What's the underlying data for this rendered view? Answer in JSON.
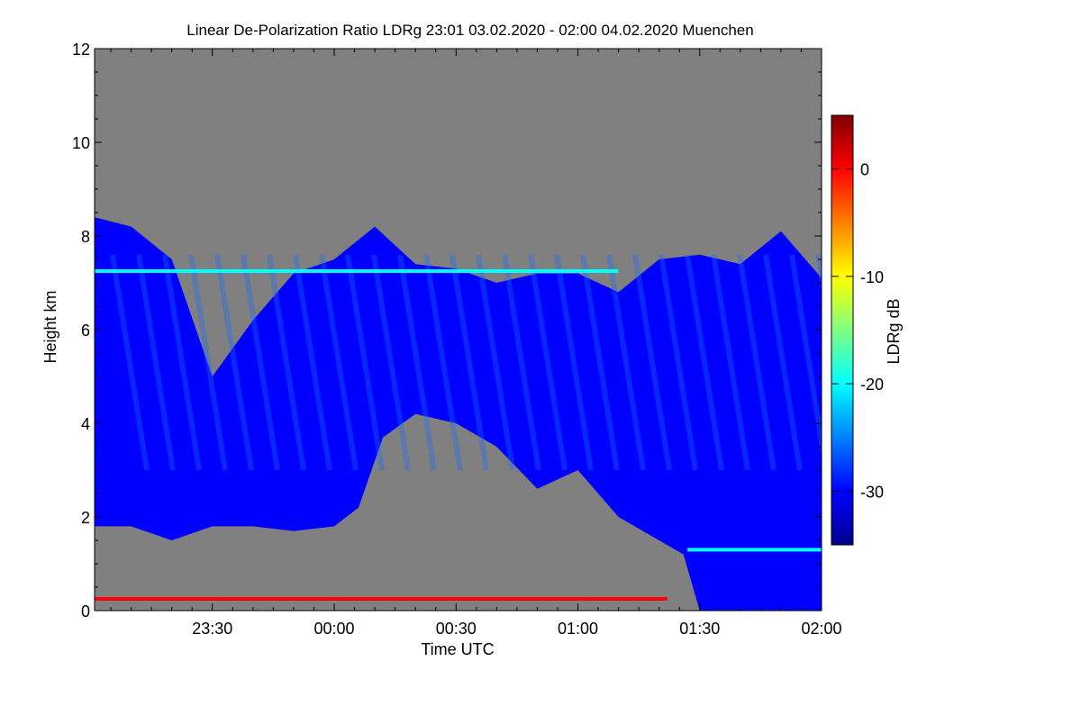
{
  "chart_data": {
    "type": "heatmap",
    "title": "Linear De-Polarization Ratio LDRg   23:01 03.02.2020 - 02:00 04.02.2020 Muenchen",
    "xlabel": "Time UTC",
    "ylabel": "Height km",
    "colorbar_label": "LDRg dB",
    "x_range": [
      "23:01",
      "02:00"
    ],
    "ylim": [
      0,
      12
    ],
    "colorbar_range": [
      -35,
      5
    ],
    "x_ticks": [
      "23:30",
      "00:00",
      "00:30",
      "01:00",
      "01:30",
      "02:00"
    ],
    "y_ticks": [
      "0",
      "2",
      "4",
      "6",
      "8",
      "10",
      "12"
    ],
    "colorbar_ticks": [
      "0",
      "-10",
      "-20",
      "-30"
    ],
    "background_color": "#808080",
    "colormap": [
      "#00008f",
      "#0000ff",
      "#0080ff",
      "#00ffff",
      "#80ff80",
      "#ffff00",
      "#ff8000",
      "#ff0000",
      "#800000"
    ],
    "cloud_top_km": [
      {
        "time": "23:01",
        "height": 8.4
      },
      {
        "time": "23:10",
        "height": 8.2
      },
      {
        "time": "23:20",
        "height": 7.5
      },
      {
        "time": "23:30",
        "height": 5.0
      },
      {
        "time": "23:40",
        "height": 6.2
      },
      {
        "time": "23:50",
        "height": 7.2
      },
      {
        "time": "00:00",
        "height": 7.5
      },
      {
        "time": "00:10",
        "height": 8.2
      },
      {
        "time": "00:20",
        "height": 7.4
      },
      {
        "time": "00:30",
        "height": 7.3
      },
      {
        "time": "00:40",
        "height": 7.0
      },
      {
        "time": "00:50",
        "height": 7.2
      },
      {
        "time": "01:00",
        "height": 7.2
      },
      {
        "time": "01:10",
        "height": 6.8
      },
      {
        "time": "01:20",
        "height": 7.5
      },
      {
        "time": "01:30",
        "height": 7.6
      },
      {
        "time": "01:40",
        "height": 7.4
      },
      {
        "time": "01:50",
        "height": 8.1
      },
      {
        "time": "02:00",
        "height": 7.1
      }
    ],
    "cloud_base_km": [
      {
        "time": "23:01",
        "height": 1.8
      },
      {
        "time": "23:10",
        "height": 1.8
      },
      {
        "time": "23:20",
        "height": 1.5
      },
      {
        "time": "23:30",
        "height": 1.8
      },
      {
        "time": "23:40",
        "height": 1.8
      },
      {
        "time": "23:50",
        "height": 1.7
      },
      {
        "time": "00:00",
        "height": 1.8
      },
      {
        "time": "00:06",
        "height": 2.2
      },
      {
        "time": "00:12",
        "height": 3.7
      },
      {
        "time": "00:20",
        "height": 4.2
      },
      {
        "time": "00:30",
        "height": 4.0
      },
      {
        "time": "00:40",
        "height": 3.5
      },
      {
        "time": "00:50",
        "height": 2.6
      },
      {
        "time": "01:00",
        "height": 3.0
      },
      {
        "time": "01:10",
        "height": 2.0
      },
      {
        "time": "01:20",
        "height": 1.5
      },
      {
        "time": "01:26",
        "height": 1.2
      },
      {
        "time": "01:30",
        "height": 0.0
      },
      {
        "time": "02:00",
        "height": 0.0
      }
    ],
    "layers": [
      {
        "start": "23:01",
        "end": "01:22",
        "height": 0.25,
        "value": -2
      },
      {
        "start": "23:01",
        "end": "01:10",
        "height": 7.25,
        "value": -20
      },
      {
        "start": "01:27",
        "end": "02:00",
        "height": 1.3,
        "value": -22
      }
    ]
  }
}
